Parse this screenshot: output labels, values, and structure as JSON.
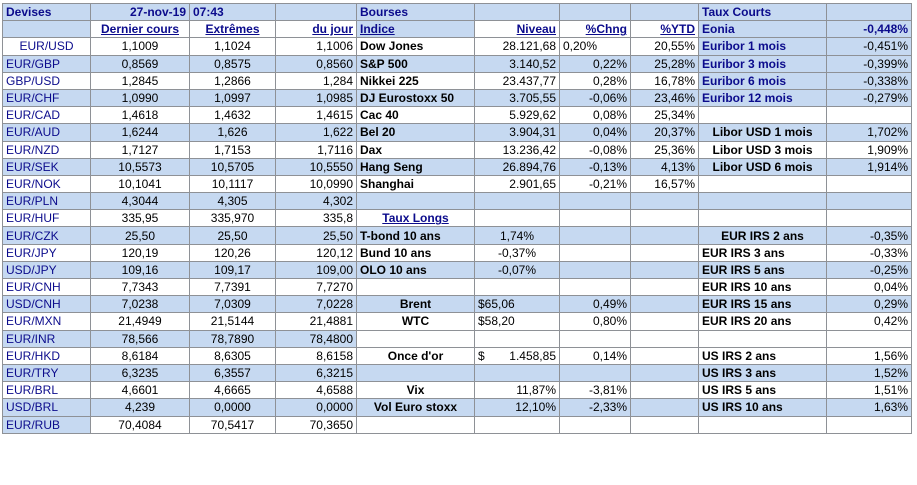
{
  "header": {
    "devises": "Devises",
    "date": "27-nov-19",
    "time": "07:43",
    "bourses": "Bourses",
    "taux_courts": "Taux Courts",
    "eonia_label": "Eonia",
    "eonia_value": "-0,448%"
  },
  "columns": {
    "dernier_cours": "Dernier cours",
    "extremes": "Extrêmes",
    "du_jour": "du jour",
    "indice": "Indice",
    "niveau": "Niveau",
    "chng": "%Chng",
    "ytd": "%YTD"
  },
  "fx": [
    {
      "pair": "EUR/USD",
      "last": "1,1009",
      "hi": "1,1024",
      "lo": "1,1006"
    },
    {
      "pair": "EUR/GBP",
      "last": "0,8569",
      "hi": "0,8575",
      "lo": "0,8560"
    },
    {
      "pair": "GBP/USD",
      "last": "1,2845",
      "hi": "1,2866",
      "lo": "1,284"
    },
    {
      "pair": "EUR/CHF",
      "last": "1,0990",
      "hi": "1,0997",
      "lo": "1,0985"
    },
    {
      "pair": "EUR/CAD",
      "last": "1,4618",
      "hi": "1,4632",
      "lo": "1,4615"
    },
    {
      "pair": "EUR/AUD",
      "last": "1,6244",
      "hi": "1,626",
      "lo": "1,622"
    },
    {
      "pair": "EUR/NZD",
      "last": "1,7127",
      "hi": "1,7153",
      "lo": "1,7116"
    },
    {
      "pair": "EUR/SEK",
      "last": "10,5573",
      "hi": "10,5705",
      "lo": "10,5550"
    },
    {
      "pair": "EUR/NOK",
      "last": "10,1041",
      "hi": "10,1117",
      "lo": "10,0990"
    },
    {
      "pair": "EUR/PLN",
      "last": "4,3044",
      "hi": "4,305",
      "lo": "4,302"
    },
    {
      "pair": "EUR/HUF",
      "last": "335,95",
      "hi": "335,970",
      "lo": "335,8"
    },
    {
      "pair": "EUR/CZK",
      "last": "25,50",
      "hi": "25,50",
      "lo": "25,50"
    },
    {
      "pair": "EUR/JPY",
      "last": "120,19",
      "hi": "120,26",
      "lo": "120,12"
    },
    {
      "pair": "USD/JPY",
      "last": "109,16",
      "hi": "109,17",
      "lo": "109,00"
    },
    {
      "pair": "EUR/CNH",
      "last": "7,7343",
      "hi": "7,7391",
      "lo": "7,7270"
    },
    {
      "pair": "USD/CNH",
      "last": "7,0238",
      "hi": "7,0309",
      "lo": "7,0228"
    },
    {
      "pair": "EUR/MXN",
      "last": "21,4949",
      "hi": "21,5144",
      "lo": "21,4881"
    },
    {
      "pair": "EUR/INR",
      "last": "78,566",
      "hi": "78,7890",
      "lo": "78,4800"
    },
    {
      "pair": "EUR/HKD",
      "last": "8,6184",
      "hi": "8,6305",
      "lo": "8,6158"
    },
    {
      "pair": "EUR/TRY",
      "last": "6,3235",
      "hi": "6,3557",
      "lo": "6,3215"
    },
    {
      "pair": "EUR/BRL",
      "last": "4,6601",
      "hi": "4,6665",
      "lo": "4,6588"
    },
    {
      "pair": "USD/BRL",
      "last": "4,239",
      "hi": "0,0000",
      "lo": "0,0000"
    },
    {
      "pair": "EUR/RUB",
      "last": "70,4084",
      "hi": "70,5417",
      "lo": "70,3650"
    }
  ],
  "indices": [
    {
      "name": "Dow Jones",
      "level": "28.121,68",
      "chng": "0,20%",
      "ytd": "20,55%"
    },
    {
      "name": "S&P 500",
      "level": "3.140,52",
      "chng": "0,22%",
      "ytd": "25,28%"
    },
    {
      "name": "Nikkei 225",
      "level": "23.437,77",
      "chng": "0,28%",
      "ytd": "16,78%"
    },
    {
      "name": "DJ Eurostoxx 50",
      "level": "3.705,55",
      "chng": "-0,06%",
      "ytd": "23,46%"
    },
    {
      "name": "Cac 40",
      "level": "5.929,62",
      "chng": "0,08%",
      "ytd": "25,34%"
    },
    {
      "name": "Bel 20",
      "level": "3.904,31",
      "chng": "0,04%",
      "ytd": "20,37%"
    },
    {
      "name": "Dax",
      "level": "13.236,42",
      "chng": "-0,08%",
      "ytd": "25,36%"
    },
    {
      "name": "Hang Seng",
      "level": "26.894,76",
      "chng": "-0,13%",
      "ytd": "4,13%"
    },
    {
      "name": "Shanghai",
      "level": "2.901,65",
      "chng": "-0,21%",
      "ytd": "16,57%"
    }
  ],
  "taux_longs": {
    "title": "Taux Longs",
    "rows": [
      {
        "name": "T-bond 10 ans",
        "value": "1,74%"
      },
      {
        "name": "Bund 10 ans",
        "value": "-0,37%"
      },
      {
        "name": "OLO 10 ans",
        "value": "-0,07%"
      }
    ]
  },
  "commodities": [
    {
      "name": "Brent",
      "value": "$65,06",
      "chng": "0,49%"
    },
    {
      "name": "WTC",
      "value": "$58,20",
      "chng": "0,80%"
    }
  ],
  "gold": {
    "name": "Once d'or",
    "currency": "$",
    "value": "1.458,85",
    "chng": "0,14%"
  },
  "vol": [
    {
      "name": "Vix",
      "value": "11,87%",
      "chng": "-3,81%"
    },
    {
      "name": "Vol Euro stoxx",
      "value": "12,10%",
      "chng": "-2,33%"
    }
  ],
  "euribor": [
    {
      "name": "Euribor 1 mois",
      "value": "-0,451%"
    },
    {
      "name": "Euribor 3 mois",
      "value": "-0,399%"
    },
    {
      "name": "Euribor 6 mois",
      "value": "-0,338%"
    },
    {
      "name": "Euribor 12 mois",
      "value": "-0,279%"
    }
  ],
  "libor": [
    {
      "name": "Libor USD 1 mois",
      "value": "1,702%"
    },
    {
      "name": "Libor USD 3 mois",
      "value": "1,909%"
    },
    {
      "name": "Libor USD 6 mois",
      "value": "1,914%"
    }
  ],
  "eur_irs": [
    {
      "name": "EUR IRS 2 ans",
      "value": "-0,35%"
    },
    {
      "name": "EUR IRS 3 ans",
      "value": "-0,33%"
    },
    {
      "name": "EUR IRS 5 ans",
      "value": "-0,25%"
    },
    {
      "name": "EUR IRS 10 ans",
      "value": "0,04%"
    },
    {
      "name": "EUR IRS 15 ans",
      "value": "0,29%"
    },
    {
      "name": "EUR IRS 20 ans",
      "value": "0,42%"
    }
  ],
  "us_irs": [
    {
      "name": "US IRS 2 ans",
      "value": "1,56%"
    },
    {
      "name": "US IRS 3 ans",
      "value": "1,52%"
    },
    {
      "name": "US IRS 5 ans",
      "value": "1,51%"
    },
    {
      "name": "US IRS 10 ans",
      "value": "1,63%"
    }
  ],
  "colors": {
    "header_text": "#0b0b8c",
    "band_blue": "#c6d9f1",
    "grid": "#8e9196"
  }
}
